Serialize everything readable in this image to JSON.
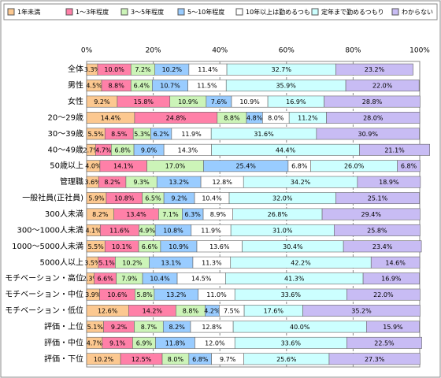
{
  "chart_data": {
    "type": "stacked-bar-horizontal",
    "categories": [
      "全体",
      "男性",
      "女性",
      "20～29歳",
      "30～39歳",
      "40～49歳",
      "50歳以上",
      "管理職",
      "一般社員(正社員)",
      "300人未満",
      "300～1000人未満",
      "1000～5000人未満",
      "5000人以上",
      "モチベーション・高位",
      "モチベーション・中位",
      "モチベーション・低位",
      "評価・上位",
      "評価・中位",
      "評価・下位"
    ],
    "xlim": [
      0,
      100
    ],
    "xticks": [
      {
        "value": 0,
        "label": "0%"
      },
      {
        "value": 20,
        "label": "20%"
      },
      {
        "value": 40,
        "label": "40%"
      },
      {
        "value": 60,
        "label": "60%"
      },
      {
        "value": 80,
        "label": "80%"
      },
      {
        "value": 100,
        "label": "100%"
      }
    ],
    "grid": true,
    "series": [
      {
        "name": "1年未満",
        "color": "#fcc890",
        "values": [
          3.3,
          4.5,
          9.2,
          14.4,
          5.5,
          2.7,
          4.0,
          3.6,
          5.9,
          8.2,
          4.1,
          5.5,
          3.5,
          2.3,
          3.9,
          12.6,
          5.1,
          4.7,
          10.2
        ],
        "value_labels": [
          "3.3%",
          "4.5%",
          "9.2%",
          "14.4%",
          "5.5%",
          "2.7%",
          "4.0%",
          "3.6%",
          "5.9%",
          "8.2%",
          "4.1%",
          "5.5%",
          "3.5%",
          "2.3%",
          "3.9%",
          "12.6%",
          "5.1%",
          "4.7%",
          "10.2%"
        ]
      },
      {
        "name": "1～3年程度",
        "color": "#ff80a8",
        "values": [
          10.0,
          8.8,
          15.8,
          24.8,
          8.5,
          4.7,
          14.1,
          8.2,
          10.8,
          13.4,
          11.6,
          10.1,
          5.1,
          6.6,
          10.6,
          14.2,
          9.2,
          9.1,
          12.5
        ],
        "value_labels": [
          "10.0%",
          "8.8%",
          "15.8%",
          "24.8%",
          "8.5%",
          "4.7%",
          "14.1%",
          "8.2%",
          "10.8%",
          "13.4%",
          "11.6%",
          "10.1%",
          "5.1%",
          "6.6%",
          "10.6%",
          "14.2%",
          "9.2%",
          "9.1%",
          "12.5%"
        ]
      },
      {
        "name": "3～5年程度",
        "color": "#ccf4b8",
        "values": [
          7.2,
          6.4,
          10.9,
          8.8,
          5.3,
          6.8,
          17.0,
          9.3,
          6.5,
          7.1,
          4.9,
          6.6,
          10.2,
          7.9,
          5.8,
          8.8,
          8.7,
          6.9,
          8.0
        ],
        "value_labels": [
          "7.2%",
          "6.4%",
          "10.9%",
          "8.8%",
          "5.3%",
          "6.8%",
          "17.0%",
          "9.3%",
          "6.5%",
          "7.1%",
          "4.9%",
          "6.6%",
          "10.2%",
          "7.9%",
          "5.8%",
          "8.8%",
          "8.7%",
          "6.9%",
          "8.0%"
        ]
      },
      {
        "name": "5～10年程度",
        "color": "#99ccff",
        "values": [
          10.2,
          10.7,
          7.6,
          4.8,
          6.2,
          9.0,
          25.4,
          13.2,
          9.2,
          6.3,
          10.8,
          10.9,
          13.1,
          10.4,
          13.2,
          4.2,
          8.2,
          11.8,
          6.8
        ],
        "value_labels": [
          "10.2%",
          "10.7%",
          "7.6%",
          "4.8%",
          "6.2%",
          "9.0%",
          "25.4%",
          "13.2%",
          "9.2%",
          "6.3%",
          "10.8%",
          "10.9%",
          "13.1%",
          "10.4%",
          "13.2%",
          "4.2%",
          "8.2%",
          "11.8%",
          "6.8%"
        ]
      },
      {
        "name": "10年以上は勤めるつもり",
        "color": "#ffffff",
        "values": [
          11.4,
          11.5,
          10.9,
          8.0,
          11.9,
          14.3,
          6.8,
          12.8,
          10.4,
          8.9,
          11.9,
          13.6,
          11.3,
          14.5,
          11.0,
          7.5,
          12.8,
          12.0,
          9.7
        ],
        "value_labels": [
          "11.4%",
          "11.5%",
          "10.9%",
          "8.0%",
          "11.9%",
          "14.3%",
          "6.8%",
          "12.8%",
          "10.4%",
          "8.9%",
          "11.9%",
          "13.6%",
          "11.3%",
          "14.5%",
          "11.0%",
          "7.5%",
          "12.8%",
          "12.0%",
          "9.7%"
        ]
      },
      {
        "name": "定年まで勤めるつもり",
        "color": "#ccffff",
        "values": [
          32.7,
          35.9,
          16.9,
          11.2,
          31.6,
          44.4,
          26.0,
          34.2,
          32.0,
          26.8,
          31.0,
          30.4,
          42.2,
          41.3,
          33.6,
          17.6,
          40.0,
          33.6,
          25.6
        ],
        "value_labels": [
          "32.7%",
          "35.9%",
          "16.9%",
          "11.2%",
          "31.6%",
          "44.4%",
          "26.0%",
          "34.2%",
          "32.0%",
          "26.8%",
          "31.0%",
          "30.4%",
          "42.2%",
          "41.3%",
          "33.6%",
          "17.6%",
          "40.0%",
          "33.6%",
          "25.6%"
        ]
      },
      {
        "name": "わからない",
        "color": "#c8bcf4",
        "values": [
          23.2,
          22.0,
          28.8,
          28.0,
          30.9,
          21.1,
          6.8,
          18.9,
          25.1,
          29.4,
          25.8,
          23.4,
          14.6,
          16.9,
          22.0,
          35.2,
          15.9,
          22.5,
          27.3
        ],
        "value_labels": [
          "23.2%",
          "22.0%",
          "28.8%",
          "28.0%",
          "30.9%",
          "21.1%",
          "6.8%",
          "18.9%",
          "25.1%",
          "29.4%",
          "25.8%",
          "23.4%",
          "14.6%",
          "16.9%",
          "22.0%",
          "35.2%",
          "15.9%",
          "22.5%",
          "27.3%"
        ]
      }
    ]
  }
}
